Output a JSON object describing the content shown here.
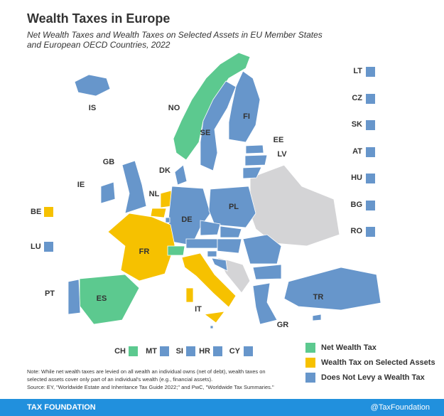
{
  "header": {
    "title": "Wealth Taxes in Europe",
    "subtitle": [
      "Net Wealth Taxes and Wealth Taxes on Selected Assets in EU Member States",
      "and European OECD Countries, 2022"
    ]
  },
  "legend": [
    {
      "label": "Net Wealth Tax",
      "color": "#5cc98f"
    },
    {
      "label": "Wealth Tax on Selected Assets",
      "color": "#f6c100"
    },
    {
      "label": "Does Not Levy a Wealth Tax",
      "color": "#6796cb"
    }
  ],
  "countries": [
    {
      "label": "IS",
      "category": 2
    },
    {
      "label": "NO",
      "category": 0
    },
    {
      "label": "SE",
      "category": 2
    },
    {
      "label": "FI",
      "category": 2
    },
    {
      "label": "EE",
      "category": 2
    },
    {
      "label": "LV",
      "category": 2
    },
    {
      "label": "DK",
      "category": 2
    },
    {
      "label": "GB",
      "category": 2
    },
    {
      "label": "IE",
      "category": 2
    },
    {
      "label": "NL",
      "category": 1
    },
    {
      "label": "DE",
      "category": 2
    },
    {
      "label": "PL",
      "category": 2
    },
    {
      "label": "FR",
      "category": 1
    },
    {
      "label": "ES",
      "category": 0
    },
    {
      "label": "PT",
      "category": 2
    },
    {
      "label": "IT",
      "category": 1
    },
    {
      "label": "GR",
      "category": 2
    },
    {
      "label": "TR",
      "category": 2
    },
    {
      "label": "LT",
      "category": 2
    },
    {
      "label": "CZ",
      "category": 2
    },
    {
      "label": "SK",
      "category": 2
    },
    {
      "label": "AT",
      "category": 2
    },
    {
      "label": "HU",
      "category": 2
    },
    {
      "label": "BG",
      "category": 2
    },
    {
      "label": "RO",
      "category": 2
    },
    {
      "label": "BE",
      "category": 1
    },
    {
      "label": "LU",
      "category": 2
    },
    {
      "label": "CH",
      "category": 0
    },
    {
      "label": "MT",
      "category": 2
    },
    {
      "label": "SI",
      "category": 2
    },
    {
      "label": "HR",
      "category": 2
    },
    {
      "label": "CY",
      "category": 2
    }
  ],
  "note": [
    "Note: While net wealth taxes are levied on all wealth an individual owns (net of debt), wealth taxes on",
    "selected assets cover only part of an individual's wealth (e.g., financial assets).",
    "Source: EY, \"Worldwide Estate and Inheritance Tax Guide 2022;\" and PwC, \"Worldwide Tax Summaries.\""
  ],
  "footer": {
    "left": "TAX FOUNDATION",
    "right": "@TaxFoundation"
  }
}
